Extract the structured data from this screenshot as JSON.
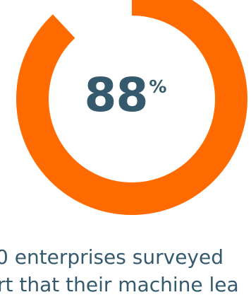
{
  "chart_data": {
    "type": "pie",
    "subtype": "donut",
    "value": 88,
    "total": 100,
    "value_text": "88",
    "unit": "%",
    "slices": [
      {
        "label": "",
        "value": 88,
        "color": "#ff6b00"
      },
      {
        "label": "",
        "value": 12,
        "color": "#ffffff"
      }
    ]
  },
  "caption": {
    "line1": "0 enterprises surveyed",
    "line2": "rt that their machine lea"
  },
  "colors": {
    "accent": "#ff6b00",
    "text": "#35596d",
    "background": "#ffffff"
  }
}
